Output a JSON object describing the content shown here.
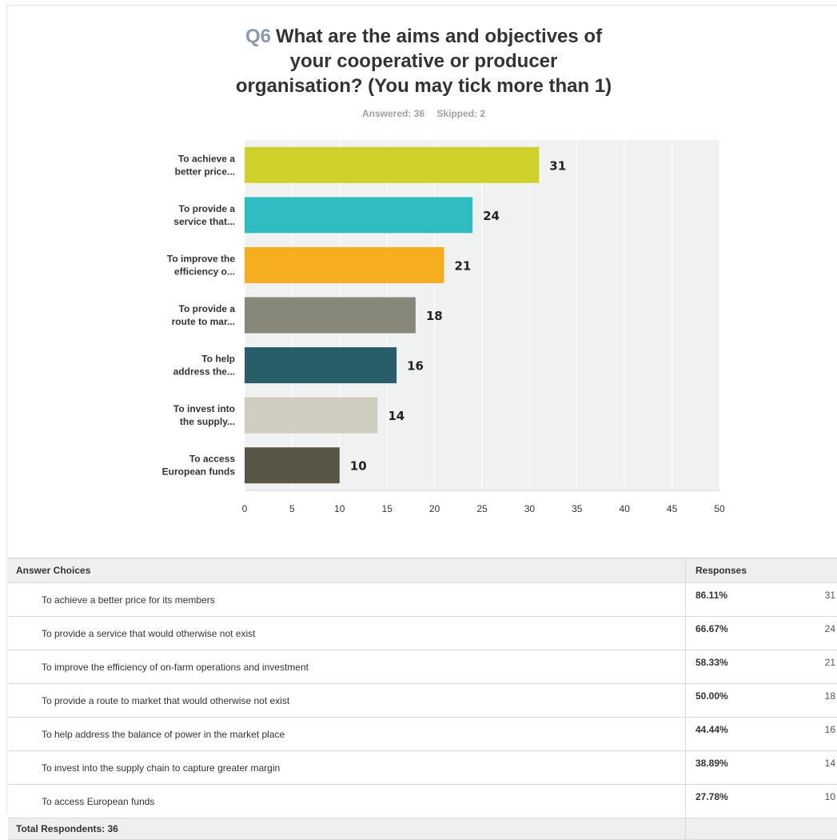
{
  "question": {
    "number": "Q6",
    "title_lines": [
      "What are the aims and objectives of",
      "your cooperative or producer",
      "organisation? (You may tick more than 1)"
    ],
    "answered": "Answered: 36",
    "skipped": "Skipped: 2"
  },
  "chart_data": {
    "type": "bar",
    "orientation": "horizontal",
    "categories": [
      [
        "To achieve a",
        "better price..."
      ],
      [
        "To provide a",
        "service that..."
      ],
      [
        "To improve the",
        "efficiency o..."
      ],
      [
        "To provide a",
        "route to mar..."
      ],
      [
        "To help",
        "address the..."
      ],
      [
        "To invest into",
        "the supply..."
      ],
      [
        "To access",
        "European funds"
      ]
    ],
    "values": [
      31,
      24,
      21,
      18,
      16,
      14,
      10
    ],
    "colors": [
      "#cfd12a",
      "#2fbdc1",
      "#f6ad1f",
      "#878879",
      "#2a5d6a",
      "#cfcdbf",
      "#5a5646"
    ],
    "xlim": [
      0,
      50
    ],
    "xticks": [
      0,
      5,
      10,
      15,
      20,
      25,
      30,
      35,
      40,
      45,
      50
    ],
    "grid": true,
    "background": "#f0f1f1"
  },
  "table": {
    "header_choices": "Answer Choices",
    "header_responses": "Responses",
    "rows": [
      {
        "choice": "To achieve a better price for its members",
        "percent": "86.11%",
        "count": "31"
      },
      {
        "choice": "To provide a service that would otherwise not exist",
        "percent": "66.67%",
        "count": "24"
      },
      {
        "choice": "To improve the efficiency of on-farm operations and investment",
        "percent": "58.33%",
        "count": "21"
      },
      {
        "choice": "To provide a route to market that would otherwise not exist",
        "percent": "50.00%",
        "count": "18"
      },
      {
        "choice": "To help address the balance of power in the market place",
        "percent": "44.44%",
        "count": "16"
      },
      {
        "choice": "To invest into the supply chain to capture greater margin",
        "percent": "38.89%",
        "count": "14"
      },
      {
        "choice": "To access European funds",
        "percent": "27.78%",
        "count": "10"
      }
    ],
    "total": "Total Respondents: 36"
  }
}
